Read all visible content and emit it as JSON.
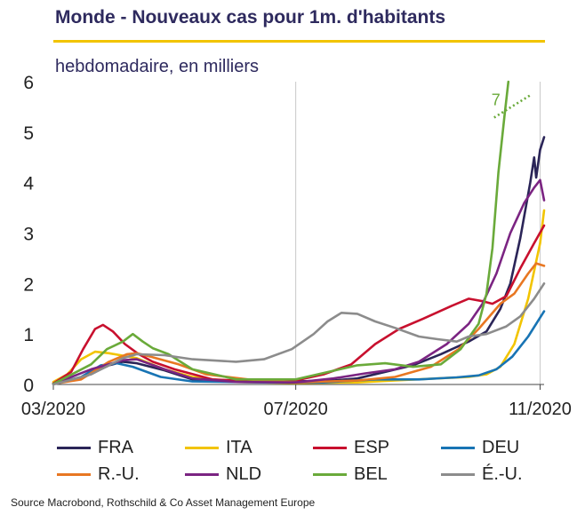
{
  "title": "Monde - Nouveaux cas pour 1m. d'habitants",
  "subtitle": "hebdomadaire, en milliers",
  "source": "Source Macrobond, Rothschild & Co Asset Management Europe",
  "colors": {
    "title": "#2e2a5e",
    "rule": "#f2c400"
  },
  "chart_data": {
    "type": "line",
    "title": "Monde - Nouveaux cas pour 1m. d'habitants",
    "subtitle": "hebdomadaire, en milliers",
    "xlabel": "",
    "ylabel": "",
    "x_ticks": [
      "03/2020",
      "07/2020",
      "11/2020"
    ],
    "x_range": [
      "2020-03-01",
      "2020-11-01"
    ],
    "ylim": [
      0,
      6
    ],
    "y_ticks": [
      "0",
      "1",
      "2",
      "3",
      "4",
      "5",
      "6"
    ],
    "grid": "vertical",
    "legend_position": "bottom",
    "annotation": {
      "text": "7",
      "x": "2020-10-16",
      "y": 5.5,
      "note_series": "BEL"
    },
    "series": [
      {
        "name": "FRA",
        "color": "#2b2558",
        "points": [
          [
            "2020-03-01",
            0.02
          ],
          [
            "2020-03-15",
            0.12
          ],
          [
            "2020-03-29",
            0.38
          ],
          [
            "2020-04-05",
            0.45
          ],
          [
            "2020-04-12",
            0.42
          ],
          [
            "2020-04-26",
            0.28
          ],
          [
            "2020-05-10",
            0.1
          ],
          [
            "2020-06-01",
            0.05
          ],
          [
            "2020-07-01",
            0.06
          ],
          [
            "2020-07-20",
            0.08
          ],
          [
            "2020-08-01",
            0.12
          ],
          [
            "2020-08-15",
            0.25
          ],
          [
            "2020-08-29",
            0.38
          ],
          [
            "2020-09-12",
            0.6
          ],
          [
            "2020-09-26",
            0.85
          ],
          [
            "2020-10-05",
            1.05
          ],
          [
            "2020-10-12",
            1.5
          ],
          [
            "2020-10-17",
            2.0
          ],
          [
            "2020-10-22",
            2.9
          ],
          [
            "2020-10-27",
            4.0
          ],
          [
            "2020-10-29",
            4.5
          ],
          [
            "2020-10-30",
            4.1
          ],
          [
            "2020-11-01",
            4.65
          ],
          [
            "2020-11-03",
            4.9
          ]
        ]
      },
      {
        "name": "ITA",
        "color": "#f2c400",
        "points": [
          [
            "2020-03-01",
            0.05
          ],
          [
            "2020-03-08",
            0.2
          ],
          [
            "2020-03-15",
            0.5
          ],
          [
            "2020-03-22",
            0.65
          ],
          [
            "2020-03-29",
            0.62
          ],
          [
            "2020-04-12",
            0.52
          ],
          [
            "2020-04-26",
            0.3
          ],
          [
            "2020-05-10",
            0.15
          ],
          [
            "2020-06-01",
            0.05
          ],
          [
            "2020-07-01",
            0.03
          ],
          [
            "2020-08-01",
            0.04
          ],
          [
            "2020-08-20",
            0.08
          ],
          [
            "2020-09-10",
            0.12
          ],
          [
            "2020-09-26",
            0.15
          ],
          [
            "2020-10-05",
            0.2
          ],
          [
            "2020-10-12",
            0.35
          ],
          [
            "2020-10-19",
            0.8
          ],
          [
            "2020-10-26",
            1.7
          ],
          [
            "2020-11-01",
            2.8
          ],
          [
            "2020-11-03",
            3.45
          ]
        ]
      },
      {
        "name": "ESP",
        "color": "#c8102e",
        "points": [
          [
            "2020-03-01",
            0.02
          ],
          [
            "2020-03-10",
            0.25
          ],
          [
            "2020-03-16",
            0.7
          ],
          [
            "2020-03-22",
            1.1
          ],
          [
            "2020-03-26",
            1.18
          ],
          [
            "2020-03-31",
            1.05
          ],
          [
            "2020-04-06",
            0.8
          ],
          [
            "2020-04-13",
            0.6
          ],
          [
            "2020-04-20",
            0.45
          ],
          [
            "2020-05-01",
            0.3
          ],
          [
            "2020-05-20",
            0.1
          ],
          [
            "2020-06-15",
            0.05
          ],
          [
            "2020-07-01",
            0.08
          ],
          [
            "2020-07-15",
            0.2
          ],
          [
            "2020-07-29",
            0.4
          ],
          [
            "2020-08-10",
            0.8
          ],
          [
            "2020-08-22",
            1.1
          ],
          [
            "2020-09-03",
            1.3
          ],
          [
            "2020-09-17",
            1.55
          ],
          [
            "2020-09-26",
            1.7
          ],
          [
            "2020-10-03",
            1.65
          ],
          [
            "2020-10-08",
            1.6
          ],
          [
            "2020-10-15",
            1.75
          ],
          [
            "2020-10-22",
            2.3
          ],
          [
            "2020-10-29",
            2.8
          ],
          [
            "2020-11-03",
            3.15
          ]
        ]
      },
      {
        "name": "DEU",
        "color": "#1874b4",
        "points": [
          [
            "2020-03-01",
            0.01
          ],
          [
            "2020-03-15",
            0.15
          ],
          [
            "2020-03-25",
            0.38
          ],
          [
            "2020-04-02",
            0.42
          ],
          [
            "2020-04-10",
            0.35
          ],
          [
            "2020-04-24",
            0.15
          ],
          [
            "2020-05-10",
            0.06
          ],
          [
            "2020-06-15",
            0.04
          ],
          [
            "2020-07-15",
            0.04
          ],
          [
            "2020-08-10",
            0.1
          ],
          [
            "2020-09-01",
            0.1
          ],
          [
            "2020-09-20",
            0.14
          ],
          [
            "2020-10-01",
            0.18
          ],
          [
            "2020-10-10",
            0.3
          ],
          [
            "2020-10-18",
            0.55
          ],
          [
            "2020-10-26",
            0.95
          ],
          [
            "2020-11-03",
            1.45
          ]
        ]
      },
      {
        "name": "R.-U.",
        "color": "#e87722",
        "points": [
          [
            "2020-03-01",
            0.01
          ],
          [
            "2020-03-15",
            0.1
          ],
          [
            "2020-03-29",
            0.45
          ],
          [
            "2020-04-07",
            0.6
          ],
          [
            "2020-04-12",
            0.62
          ],
          [
            "2020-04-19",
            0.55
          ],
          [
            "2020-05-03",
            0.4
          ],
          [
            "2020-05-17",
            0.2
          ],
          [
            "2020-06-07",
            0.1
          ],
          [
            "2020-07-01",
            0.04
          ],
          [
            "2020-08-01",
            0.08
          ],
          [
            "2020-08-20",
            0.15
          ],
          [
            "2020-09-07",
            0.35
          ],
          [
            "2020-09-21",
            0.7
          ],
          [
            "2020-10-01",
            1.1
          ],
          [
            "2020-10-12",
            1.6
          ],
          [
            "2020-10-19",
            1.8
          ],
          [
            "2020-10-26",
            2.2
          ],
          [
            "2020-10-30",
            2.4
          ],
          [
            "2020-11-03",
            2.35
          ]
        ]
      },
      {
        "name": "NLD",
        "color": "#7b2482",
        "points": [
          [
            "2020-03-01",
            0.01
          ],
          [
            "2020-03-20",
            0.3
          ],
          [
            "2020-04-05",
            0.48
          ],
          [
            "2020-04-12",
            0.5
          ],
          [
            "2020-04-26",
            0.3
          ],
          [
            "2020-05-10",
            0.12
          ],
          [
            "2020-06-01",
            0.05
          ],
          [
            "2020-07-01",
            0.04
          ],
          [
            "2020-07-20",
            0.12
          ],
          [
            "2020-08-05",
            0.22
          ],
          [
            "2020-08-20",
            0.3
          ],
          [
            "2020-09-01",
            0.45
          ],
          [
            "2020-09-15",
            0.8
          ],
          [
            "2020-09-26",
            1.2
          ],
          [
            "2020-10-03",
            1.6
          ],
          [
            "2020-10-10",
            2.2
          ],
          [
            "2020-10-17",
            3.0
          ],
          [
            "2020-10-24",
            3.6
          ],
          [
            "2020-10-29",
            3.9
          ],
          [
            "2020-11-01",
            4.05
          ],
          [
            "2020-11-03",
            3.65
          ]
        ]
      },
      {
        "name": "BEL",
        "color": "#6aaa3a",
        "points": [
          [
            "2020-03-01",
            0.01
          ],
          [
            "2020-03-20",
            0.4
          ],
          [
            "2020-03-28",
            0.7
          ],
          [
            "2020-04-05",
            0.85
          ],
          [
            "2020-04-10",
            1.0
          ],
          [
            "2020-04-15",
            0.85
          ],
          [
            "2020-04-20",
            0.72
          ],
          [
            "2020-04-28",
            0.6
          ],
          [
            "2020-05-10",
            0.3
          ],
          [
            "2020-06-01",
            0.1
          ],
          [
            "2020-07-01",
            0.1
          ],
          [
            "2020-08-01",
            0.38
          ],
          [
            "2020-08-15",
            0.42
          ],
          [
            "2020-08-29",
            0.35
          ],
          [
            "2020-09-12",
            0.4
          ],
          [
            "2020-09-22",
            0.7
          ],
          [
            "2020-10-01",
            1.2
          ],
          [
            "2020-10-05",
            1.8
          ],
          [
            "2020-10-08",
            2.7
          ],
          [
            "2020-10-11",
            4.2
          ],
          [
            "2020-10-14",
            5.3
          ],
          [
            "2020-10-16",
            6.0
          ]
        ]
      },
      {
        "name": "É.-U.",
        "color": "#8c8c8c",
        "points": [
          [
            "2020-03-01",
            0.0
          ],
          [
            "2020-03-20",
            0.2
          ],
          [
            "2020-04-05",
            0.52
          ],
          [
            "2020-04-12",
            0.6
          ],
          [
            "2020-04-26",
            0.58
          ],
          [
            "2020-05-10",
            0.5
          ],
          [
            "2020-06-01",
            0.45
          ],
          [
            "2020-06-15",
            0.5
          ],
          [
            "2020-06-29",
            0.7
          ],
          [
            "2020-07-10",
            1.0
          ],
          [
            "2020-07-17",
            1.25
          ],
          [
            "2020-07-24",
            1.42
          ],
          [
            "2020-08-01",
            1.4
          ],
          [
            "2020-08-10",
            1.25
          ],
          [
            "2020-08-20",
            1.12
          ],
          [
            "2020-09-01",
            0.95
          ],
          [
            "2020-09-10",
            0.9
          ],
          [
            "2020-09-20",
            0.85
          ],
          [
            "2020-09-26",
            0.95
          ],
          [
            "2020-10-05",
            1.0
          ],
          [
            "2020-10-15",
            1.15
          ],
          [
            "2020-10-22",
            1.35
          ],
          [
            "2020-10-29",
            1.7
          ],
          [
            "2020-11-03",
            2.0
          ]
        ]
      }
    ]
  },
  "legend": [
    {
      "label": "FRA",
      "color": "#2b2558"
    },
    {
      "label": "ITA",
      "color": "#f2c400"
    },
    {
      "label": "ESP",
      "color": "#c8102e"
    },
    {
      "label": "DEU",
      "color": "#1874b4"
    },
    {
      "label": "R.-U.",
      "color": "#e87722"
    },
    {
      "label": "NLD",
      "color": "#7b2482"
    },
    {
      "label": "BEL",
      "color": "#6aaa3a"
    },
    {
      "label": "É.-U.",
      "color": "#8c8c8c"
    }
  ]
}
